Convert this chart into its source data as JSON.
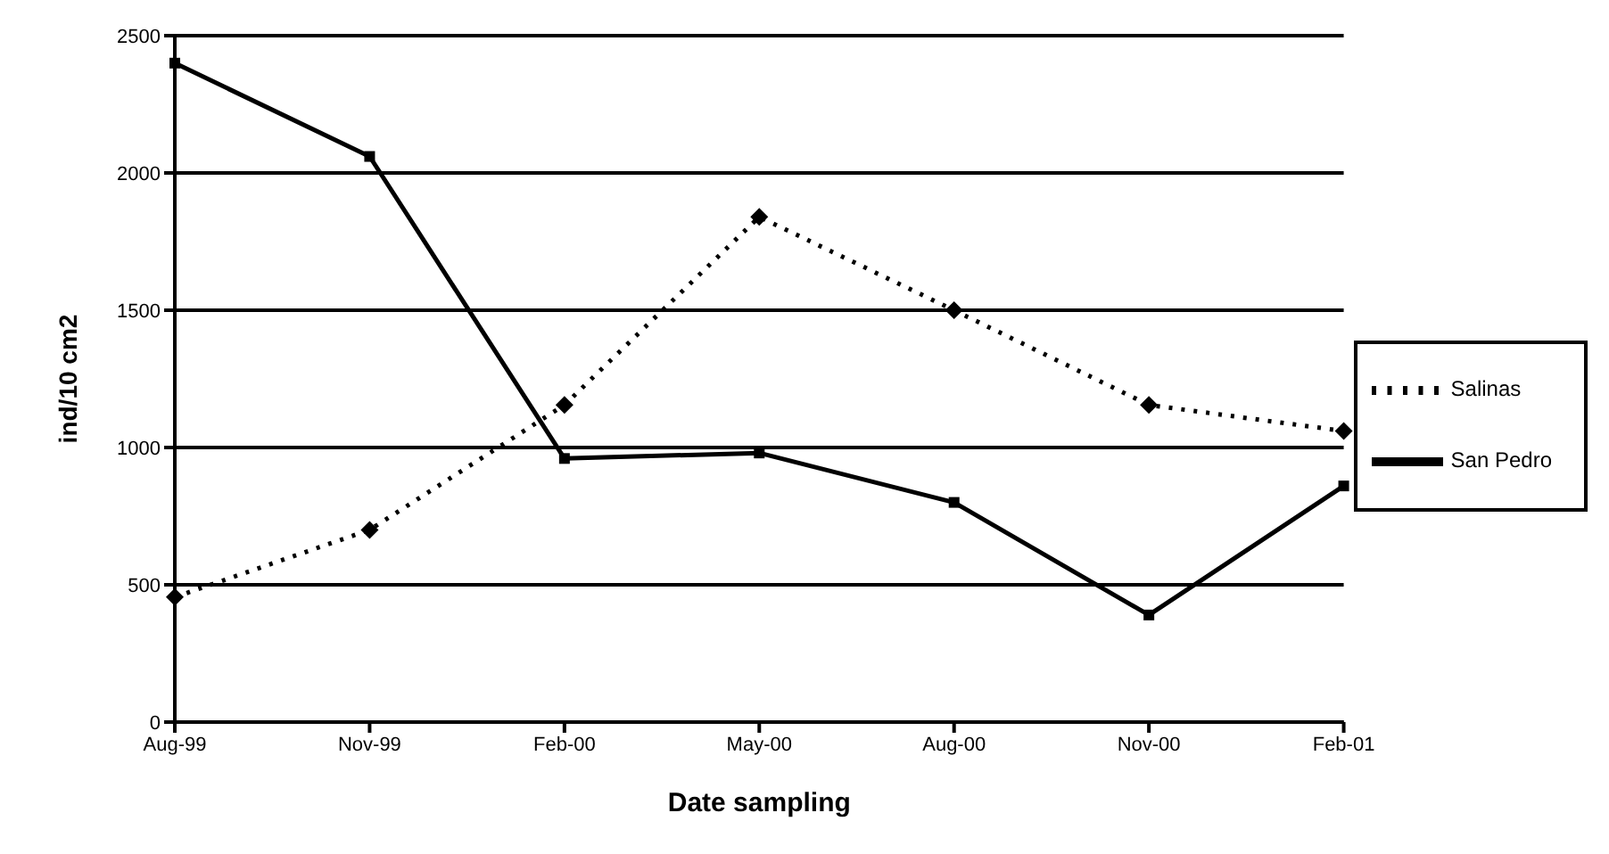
{
  "chart_data": {
    "type": "line",
    "xlabel": "Date sampling",
    "ylabel": "ind/10 cm2",
    "categories": [
      "Aug-99",
      "Nov-99",
      "Feb-00",
      "May-00",
      "Aug-00",
      "Nov-00",
      "Feb-01"
    ],
    "series": [
      {
        "name": "San Pedro",
        "color": "#000000",
        "marker": "square",
        "line_style": "solid",
        "values": [
          2400,
          2060,
          960,
          980,
          800,
          390,
          860
        ]
      },
      {
        "name": "Salinas",
        "color": "#000000",
        "marker": "diamond",
        "line_style": "dotted",
        "values": [
          455,
          700,
          1155,
          1840,
          1500,
          1155,
          1060
        ]
      }
    ],
    "ylim": [
      0,
      2500
    ],
    "yticks": [
      0,
      500,
      1000,
      1500,
      2000,
      2500
    ],
    "grid": "y",
    "legend": "right"
  }
}
